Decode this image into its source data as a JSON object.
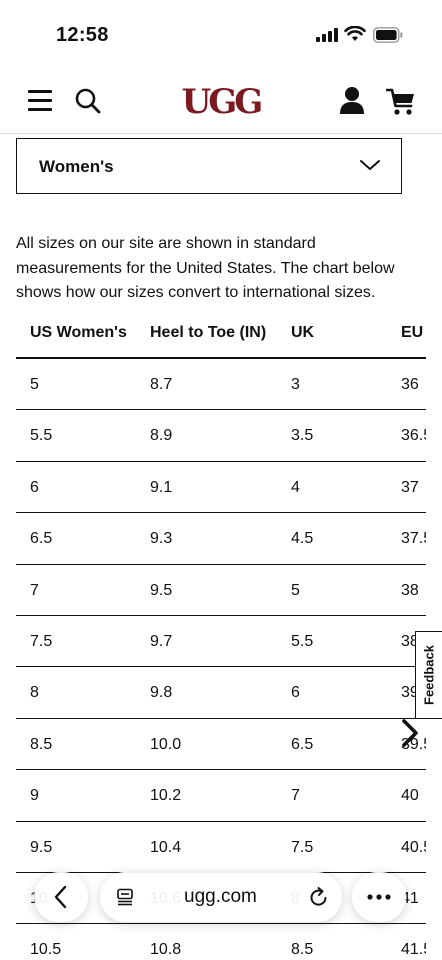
{
  "status_bar": {
    "time": "12:58"
  },
  "header": {
    "logo_text": "UGG",
    "brand_color": "#7c1a22"
  },
  "size_select": {
    "selected": "Women's"
  },
  "intro_text": "All sizes on our site are shown in standard measurements for the United States. The chart below shows how our sizes convert to international sizes.",
  "table": {
    "headers": [
      "US Women's",
      "Heel to Toe (IN)",
      "UK",
      "EU"
    ],
    "rows": [
      [
        "5",
        "8.7",
        "3",
        "36"
      ],
      [
        "5.5",
        "8.9",
        "3.5",
        "36.5"
      ],
      [
        "6",
        "9.1",
        "4",
        "37"
      ],
      [
        "6.5",
        "9.3",
        "4.5",
        "37.5"
      ],
      [
        "7",
        "9.5",
        "5",
        "38"
      ],
      [
        "7.5",
        "9.7",
        "5.5",
        "38.5"
      ],
      [
        "8",
        "9.8",
        "6",
        "39"
      ],
      [
        "8.5",
        "10.0",
        "6.5",
        "39.5"
      ],
      [
        "9",
        "10.2",
        "7",
        "40"
      ],
      [
        "9.5",
        "10.4",
        "7.5",
        "40.5"
      ],
      [
        "10",
        "10.6",
        "8",
        "41"
      ],
      [
        "10.5",
        "10.8",
        "8.5",
        "41.5"
      ]
    ]
  },
  "feedback": {
    "label": "Feedback"
  },
  "browser": {
    "url": "ugg.com"
  }
}
